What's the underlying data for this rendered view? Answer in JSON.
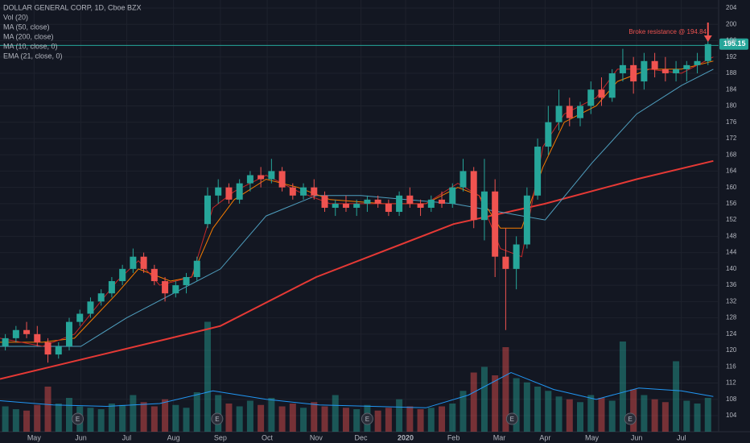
{
  "chart_data": {
    "type": "candlestick",
    "title": "DOLLAR GENERAL CORP, 1D, Cboe BZX",
    "indicators": [
      "Vol (20)",
      "MA (50, close)",
      "MA (200, close)",
      "MA (10, close, 0)",
      "EMA (21, close, 0)"
    ],
    "annotation": "Broke resistance @ 194.84",
    "resistance": 194.84,
    "up_color": "#26a69a",
    "down_color": "#ef5350",
    "grid": true,
    "xlim": [
      0,
      67.5
    ],
    "ylim": [
      99.26,
      205.98
    ],
    "yticks": [
      104,
      108,
      112,
      116,
      120,
      124,
      128,
      132,
      136,
      140,
      144,
      148,
      152,
      156,
      160,
      164,
      168,
      172,
      176,
      180,
      184,
      188,
      192,
      196,
      200,
      204
    ],
    "xticks": [
      {
        "value": 3.2,
        "label": "May"
      },
      {
        "value": 7.6,
        "label": "Jun"
      },
      {
        "value": 11.9,
        "label": "Jul"
      },
      {
        "value": 16.3,
        "label": "Aug"
      },
      {
        "value": 20.7,
        "label": "Sep"
      },
      {
        "value": 25.1,
        "label": "Oct"
      },
      {
        "value": 29.7,
        "label": "Nov"
      },
      {
        "value": 33.9,
        "label": "Dec"
      },
      {
        "value": 38.1,
        "label": "2020"
      },
      {
        "value": 42.6,
        "label": "Feb"
      },
      {
        "value": 46.9,
        "label": "Mar"
      },
      {
        "value": 51.2,
        "label": "Apr"
      },
      {
        "value": 55.6,
        "label": "May"
      },
      {
        "value": 59.8,
        "label": "Jun"
      },
      {
        "value": 64.0,
        "label": "Jul"
      }
    ],
    "x": [
      0.5,
      1.5,
      2.5,
      3.5,
      4.5,
      5.5,
      6.5,
      7.5,
      8.5,
      9.5,
      10.5,
      11.5,
      12.5,
      13.5,
      14.5,
      15.5,
      16.5,
      17.5,
      18.5,
      19.5,
      20.5,
      21.5,
      22.5,
      23.5,
      24.5,
      25.5,
      26.5,
      27.5,
      28.5,
      29.5,
      30.5,
      31.5,
      32.5,
      33.5,
      34.5,
      35.5,
      36.5,
      37.5,
      38.5,
      39.5,
      40.5,
      41.5,
      42.5,
      43.5,
      44.5,
      45.5,
      46.5,
      47.5,
      48.5,
      49.5,
      50.5,
      51.5,
      52.5,
      53.5,
      54.5,
      55.5,
      56.5,
      57.5,
      58.5,
      59.5,
      60.5,
      61.5,
      62.5,
      63.5,
      64.5,
      65.5,
      66.5
    ],
    "open": [
      121,
      123,
      125,
      124,
      122,
      119,
      121,
      127,
      129,
      132,
      134,
      137,
      140,
      143,
      140,
      137,
      134,
      136,
      138,
      151,
      158,
      160,
      157,
      161,
      163,
      162,
      164,
      160,
      158,
      160,
      158,
      155,
      156,
      155,
      156,
      157,
      156,
      154,
      158,
      156,
      155,
      157,
      156,
      160,
      164,
      152,
      159,
      143,
      140,
      146,
      158,
      170,
      176,
      180,
      177,
      180,
      184,
      182,
      188,
      190,
      186,
      191,
      189,
      188,
      189,
      190,
      191
    ],
    "high": [
      124,
      126,
      127,
      126,
      123,
      122,
      128,
      130,
      133,
      135,
      138,
      141,
      145,
      144,
      141,
      138,
      137,
      139,
      143,
      160,
      162,
      161,
      162,
      164,
      165,
      167,
      165,
      161,
      161,
      162,
      159,
      157,
      158,
      157,
      158,
      158,
      157,
      159,
      160,
      157,
      158,
      159,
      161,
      167,
      165,
      167,
      162,
      150,
      148,
      160,
      172,
      180,
      184,
      182,
      181,
      186,
      187,
      189,
      194,
      192,
      193,
      193,
      192,
      191,
      191,
      193,
      196
    ],
    "low": [
      120,
      122,
      123,
      121,
      117,
      118,
      120,
      126,
      128,
      131,
      133,
      136,
      139,
      139,
      136,
      132,
      133,
      134,
      137,
      150,
      156,
      156,
      156,
      159,
      160,
      161,
      159,
      157,
      157,
      157,
      154,
      153,
      154,
      153,
      154,
      155,
      153,
      153,
      155,
      153,
      154,
      155,
      155,
      159,
      150,
      147,
      138,
      125,
      135,
      145,
      157,
      168,
      174,
      175,
      175,
      178,
      180,
      181,
      186,
      183,
      184,
      187,
      186,
      186,
      186,
      188,
      190
    ],
    "close": [
      123,
      125,
      124,
      122,
      119,
      121,
      127,
      129,
      132,
      134,
      137,
      140,
      143,
      140,
      137,
      134,
      136,
      138,
      142,
      158,
      160,
      157,
      161,
      163,
      162,
      164,
      160,
      158,
      160,
      158,
      155,
      156,
      155,
      156,
      157,
      156,
      154,
      158,
      156,
      155,
      157,
      156,
      160,
      164,
      152,
      159,
      143,
      140,
      146,
      158,
      170,
      176,
      180,
      177,
      180,
      184,
      182,
      188,
      190,
      186,
      191,
      189,
      188,
      189,
      190,
      191,
      195.15
    ],
    "volume": [
      1.8,
      1.6,
      1.5,
      1.9,
      3.2,
      2.0,
      2.4,
      1.8,
      1.7,
      1.6,
      2.0,
      1.9,
      2.6,
      2.1,
      1.8,
      2.3,
      1.9,
      1.7,
      2.8,
      7.8,
      2.6,
      2.0,
      1.8,
      2.2,
      1.9,
      2.4,
      1.8,
      2.0,
      1.7,
      2.1,
      1.8,
      2.6,
      1.7,
      1.6,
      1.9,
      1.5,
      1.7,
      2.3,
      1.8,
      1.6,
      1.7,
      1.8,
      2.0,
      2.9,
      4.2,
      4.6,
      4.0,
      6.0,
      3.8,
      3.5,
      3.2,
      2.9,
      2.5,
      2.3,
      2.1,
      2.6,
      2.4,
      2.2,
      6.4,
      3.0,
      2.6,
      2.3,
      2.1,
      5.0,
      2.2,
      2.0,
      2.4
    ],
    "vlim": [
      0,
      8
    ],
    "lines": [
      {
        "name": "MA (200, close)",
        "color": "#e53935",
        "width": 2,
        "x": [
          0,
          16,
          20.7,
          29.7,
          42.6,
          51.2,
          59.8,
          67
        ],
        "values": [
          113,
          123,
          126,
          138,
          151,
          156,
          162,
          166.5
        ]
      },
      {
        "name": "MA (50, close)",
        "color": "#4f9fbf",
        "width": 1,
        "x": [
          0,
          7.6,
          11.9,
          16.3,
          20.7,
          25,
          29.7,
          33.9,
          42.6,
          46.9,
          51.2,
          55.6,
          59.8,
          64,
          67
        ],
        "values": [
          121,
          121,
          128,
          134,
          140,
          153,
          158,
          158,
          156,
          154,
          152,
          166,
          178,
          185,
          189
        ]
      },
      {
        "name": "EMA (21, close, 0)",
        "color": "#f57c00",
        "width": 1,
        "x": [
          0,
          4,
          7,
          11,
          13,
          16,
          18,
          20,
          22,
          25,
          28,
          31,
          36,
          40,
          43,
          45,
          47,
          49,
          51,
          53,
          56,
          58,
          61,
          64,
          67
        ],
        "values": [
          122,
          122,
          123,
          134,
          140,
          137,
          138,
          150,
          157,
          162,
          160,
          157,
          156,
          156,
          160,
          158,
          150,
          150,
          165,
          176,
          180,
          186,
          189,
          189,
          191
        ]
      },
      {
        "name": "MA (10, close, 0)",
        "color": "#c62828",
        "width": 1,
        "x": [
          0,
          4,
          7,
          11,
          13,
          15,
          18,
          20,
          22,
          25,
          28,
          31,
          36,
          40,
          43,
          45,
          47,
          49,
          51,
          53,
          56,
          58,
          61,
          64,
          67
        ],
        "values": [
          123,
          121,
          124,
          137,
          142,
          136,
          138,
          155,
          159,
          163,
          159,
          156,
          156,
          156,
          161,
          158,
          145,
          143,
          170,
          178,
          182,
          189,
          189,
          188,
          192
        ]
      }
    ],
    "vol_ma": {
      "color": "#2196f3",
      "x": [
        0,
        5,
        10,
        15,
        20,
        25,
        30,
        35,
        40,
        44,
        48,
        52,
        56,
        60,
        64,
        67
      ],
      "values": [
        2.2,
        1.9,
        1.8,
        2.0,
        2.9,
        2.3,
        1.9,
        1.8,
        1.7,
        2.6,
        4.2,
        3.0,
        2.3,
        3.1,
        2.9,
        2.5
      ]
    },
    "earnings": {
      "label": "E",
      "x": [
        7.3,
        20.4,
        34.5,
        48.1,
        59.2
      ]
    }
  }
}
